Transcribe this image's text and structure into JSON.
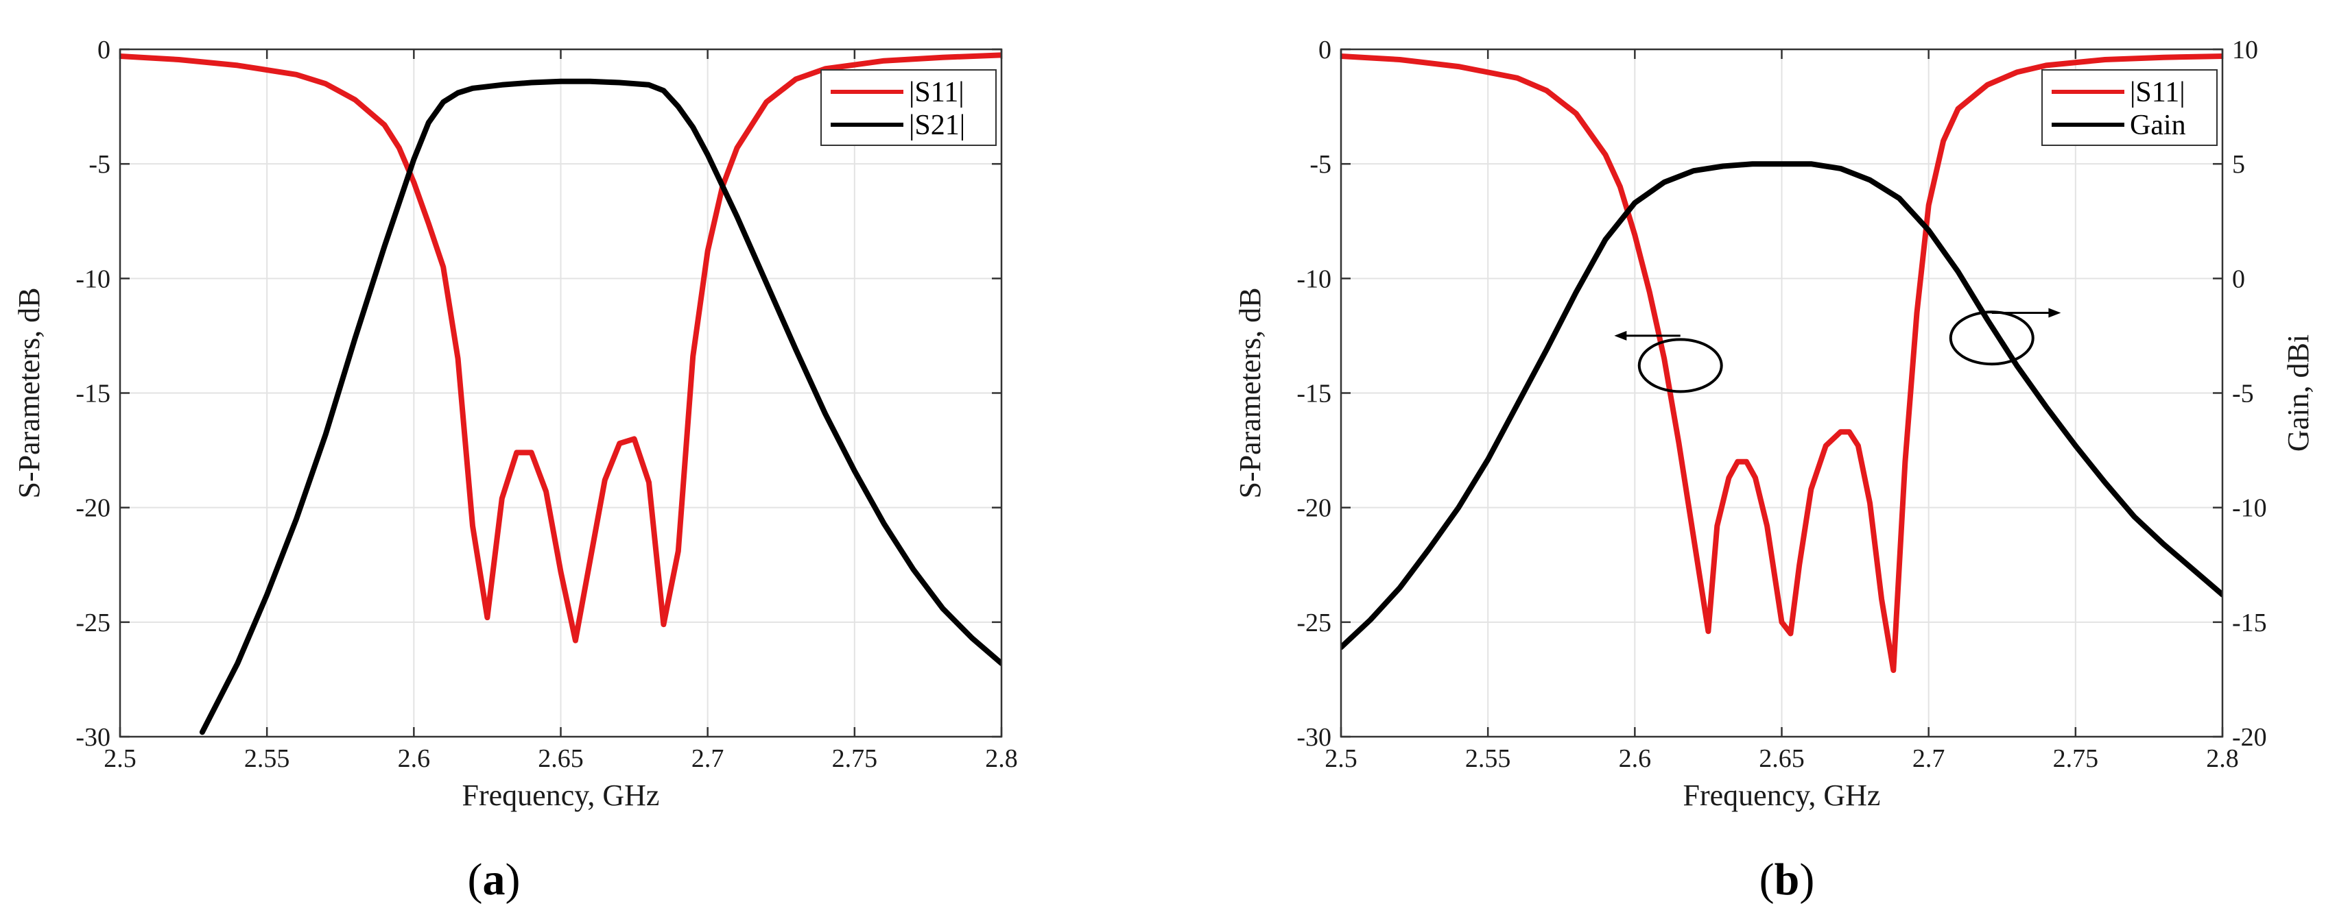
{
  "colors": {
    "s11": "#e41a1c",
    "s21": "#000000",
    "gain": "#000000"
  },
  "chart_data": [
    {
      "type": "line",
      "panel_label": "a",
      "title": "",
      "xlabel": "Frequency, GHz",
      "ylabel": "S-Parameters, dB",
      "xlim": [
        2.5,
        2.8
      ],
      "ylim": [
        -30,
        0
      ],
      "xticks": [
        "2.5",
        "2.55",
        "2.6",
        "2.65",
        "2.7",
        "2.75",
        "2.8"
      ],
      "yticks": [
        "0",
        "-5",
        "-10",
        "-15",
        "-20",
        "-25",
        "-30"
      ],
      "grid": true,
      "legend": "top-right",
      "series": [
        {
          "name": "|S11|",
          "color": "#e41a1c",
          "x": [
            2.5,
            2.52,
            2.54,
            2.56,
            2.57,
            2.58,
            2.59,
            2.595,
            2.6,
            2.605,
            2.61,
            2.615,
            2.62,
            2.625,
            2.63,
            2.635,
            2.64,
            2.645,
            2.65,
            2.655,
            2.66,
            2.665,
            2.67,
            2.675,
            2.68,
            2.685,
            2.69,
            2.695,
            2.7,
            2.705,
            2.71,
            2.72,
            2.73,
            2.74,
            2.76,
            2.78,
            2.8
          ],
          "y": [
            -0.3,
            -0.45,
            -0.7,
            -1.1,
            -1.5,
            -2.2,
            -3.3,
            -4.3,
            -5.8,
            -7.6,
            -9.5,
            -13.5,
            -20.8,
            -24.8,
            -19.6,
            -17.6,
            -17.6,
            -19.3,
            -22.8,
            -25.8,
            -22.3,
            -18.8,
            -17.2,
            -17.0,
            -18.9,
            -25.1,
            -21.9,
            -13.4,
            -8.8,
            -6.0,
            -4.3,
            -2.3,
            -1.3,
            -0.85,
            -0.5,
            -0.35,
            -0.25
          ]
        },
        {
          "name": "|S21|",
          "color": "#000000",
          "x": [
            2.528,
            2.54,
            2.55,
            2.56,
            2.57,
            2.58,
            2.59,
            2.6,
            2.605,
            2.61,
            2.615,
            2.62,
            2.63,
            2.64,
            2.65,
            2.66,
            2.67,
            2.68,
            2.685,
            2.69,
            2.695,
            2.7,
            2.71,
            2.72,
            2.73,
            2.74,
            2.75,
            2.76,
            2.77,
            2.78,
            2.79,
            2.8
          ],
          "y": [
            -29.8,
            -26.8,
            -23.8,
            -20.5,
            -16.8,
            -12.6,
            -8.6,
            -4.8,
            -3.2,
            -2.3,
            -1.9,
            -1.7,
            -1.55,
            -1.45,
            -1.4,
            -1.4,
            -1.45,
            -1.55,
            -1.8,
            -2.5,
            -3.4,
            -4.6,
            -7.3,
            -10.2,
            -13.1,
            -15.9,
            -18.4,
            -20.7,
            -22.7,
            -24.4,
            -25.7,
            -26.8
          ]
        }
      ]
    },
    {
      "type": "line",
      "panel_label": "b",
      "title": "",
      "xlabel": "Frequency, GHz",
      "ylabel": "S-Parameters, dB",
      "y2label": "Gain, dBi",
      "xlim": [
        2.5,
        2.8
      ],
      "ylim": [
        -30,
        0
      ],
      "y2lim": [
        -20,
        10
      ],
      "xticks": [
        "2.5",
        "2.55",
        "2.6",
        "2.65",
        "2.7",
        "2.75",
        "2.8"
      ],
      "yticks": [
        "0",
        "-5",
        "-10",
        "-15",
        "-20",
        "-25",
        "-30"
      ],
      "y2ticks": [
        "10",
        "5",
        "0",
        "-5",
        "-10",
        "-15",
        "-20"
      ],
      "grid": true,
      "legend": "top-right",
      "series": [
        {
          "name": "|S11|",
          "axis": "left",
          "color": "#e41a1c",
          "x": [
            2.5,
            2.52,
            2.54,
            2.56,
            2.57,
            2.58,
            2.59,
            2.595,
            2.6,
            2.605,
            2.61,
            2.615,
            2.62,
            2.625,
            2.628,
            2.632,
            2.635,
            2.638,
            2.641,
            2.645,
            2.65,
            2.653,
            2.656,
            2.66,
            2.665,
            2.67,
            2.673,
            2.676,
            2.68,
            2.684,
            2.688,
            2.692,
            2.696,
            2.7,
            2.705,
            2.71,
            2.72,
            2.73,
            2.74,
            2.76,
            2.78,
            2.8
          ],
          "y": [
            -0.3,
            -0.45,
            -0.75,
            -1.25,
            -1.8,
            -2.8,
            -4.6,
            -6.0,
            -8.1,
            -10.6,
            -13.5,
            -17.2,
            -21.3,
            -25.4,
            -20.8,
            -18.7,
            -18.0,
            -18.0,
            -18.7,
            -20.8,
            -25.0,
            -25.5,
            -22.5,
            -19.2,
            -17.3,
            -16.7,
            -16.7,
            -17.3,
            -19.8,
            -24.0,
            -27.1,
            -18.0,
            -11.5,
            -6.8,
            -4.0,
            -2.6,
            -1.55,
            -1.0,
            -0.7,
            -0.45,
            -0.35,
            -0.3
          ]
        },
        {
          "name": "Gain",
          "axis": "right",
          "color": "#000000",
          "x": [
            2.5,
            2.51,
            2.52,
            2.53,
            2.54,
            2.55,
            2.56,
            2.57,
            2.58,
            2.59,
            2.6,
            2.61,
            2.62,
            2.63,
            2.64,
            2.65,
            2.66,
            2.67,
            2.68,
            2.69,
            2.7,
            2.71,
            2.72,
            2.73,
            2.74,
            2.75,
            2.76,
            2.77,
            2.78,
            2.79,
            2.8
          ],
          "y": [
            -16.1,
            -14.9,
            -13.5,
            -11.8,
            -10.0,
            -7.9,
            -5.5,
            -3.1,
            -0.6,
            1.7,
            3.3,
            4.2,
            4.7,
            4.9,
            5.0,
            5.0,
            5.0,
            4.8,
            4.3,
            3.5,
            2.1,
            0.3,
            -1.8,
            -3.8,
            -5.6,
            -7.3,
            -8.9,
            -10.4,
            -11.6,
            -12.7,
            -13.8
          ]
        }
      ]
    }
  ]
}
